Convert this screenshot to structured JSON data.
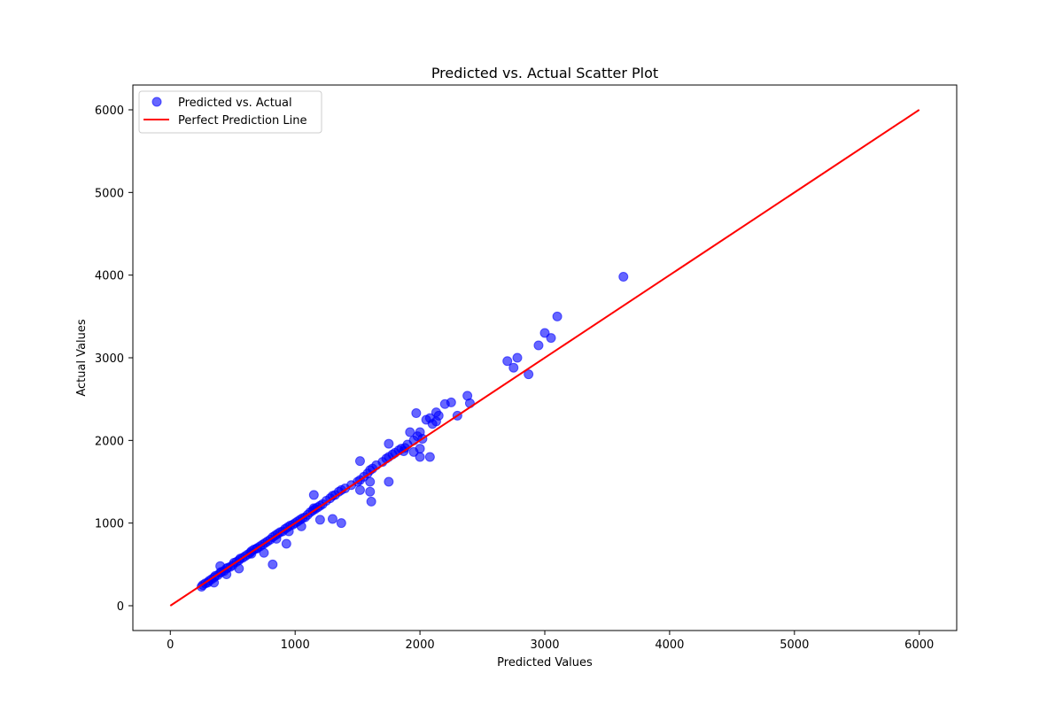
{
  "chart_data": {
    "type": "scatter",
    "title": "Predicted vs. Actual Scatter Plot",
    "xlabel": "Predicted Values",
    "ylabel": "Actual Values",
    "xlim": [
      -300,
      6300
    ],
    "ylim": [
      -300,
      6300
    ],
    "xticks": [
      0,
      1000,
      2000,
      3000,
      4000,
      5000,
      6000
    ],
    "yticks": [
      0,
      1000,
      2000,
      3000,
      4000,
      5000,
      6000
    ],
    "grid": false,
    "legend_position": "top-left",
    "series": [
      {
        "name": "Predicted vs. Actual",
        "kind": "scatter",
        "color": "#0000ff",
        "opacity": 0.6,
        "x": [
          250,
          260,
          280,
          300,
          310,
          330,
          350,
          360,
          380,
          400,
          410,
          430,
          450,
          460,
          480,
          500,
          510,
          530,
          550,
          560,
          580,
          600,
          620,
          640,
          650,
          670,
          690,
          700,
          720,
          740,
          760,
          780,
          800,
          820,
          840,
          860,
          880,
          900,
          920,
          940,
          960,
          980,
          1000,
          1020,
          1040,
          1060,
          1080,
          1100,
          1120,
          1140,
          1160,
          1180,
          1200,
          1220,
          1250,
          1280,
          1300,
          1320,
          1350,
          1370,
          1400,
          1450,
          1500,
          1520,
          1550,
          1580,
          1600,
          1620,
          1650,
          1700,
          1730,
          1750,
          1780,
          1800,
          1830,
          1850,
          1880,
          1900,
          1950,
          1980,
          2000,
          2020,
          2050,
          2080,
          2100,
          2130,
          2150,
          2200,
          2250,
          2300,
          2380,
          2400,
          2700,
          2750,
          2780,
          2870,
          2950,
          3000,
          3050,
          3100,
          3630,
          400,
          820,
          1370,
          1610,
          930,
          1300,
          1600,
          2080,
          1750,
          1600,
          1200,
          2000,
          1520,
          1520,
          1150,
          350,
          450,
          550,
          650,
          750,
          850,
          950,
          1050,
          1150,
          1750,
          1870,
          1920,
          1970,
          2130,
          2000,
          1950
        ],
        "y": [
          230,
          250,
          270,
          280,
          300,
          320,
          340,
          360,
          370,
          400,
          410,
          420,
          450,
          460,
          470,
          490,
          520,
          530,
          550,
          570,
          580,
          600,
          620,
          640,
          660,
          680,
          690,
          700,
          720,
          740,
          760,
          780,
          800,
          830,
          850,
          870,
          890,
          900,
          930,
          950,
          970,
          980,
          1000,
          1020,
          1040,
          1060,
          1070,
          1100,
          1130,
          1150,
          1170,
          1190,
          1210,
          1230,
          1270,
          1300,
          1330,
          1340,
          1380,
          1400,
          1420,
          1460,
          1500,
          1520,
          1560,
          1600,
          1640,
          1660,
          1700,
          1740,
          1780,
          1800,
          1830,
          1850,
          1880,
          1900,
          1910,
          1950,
          2000,
          2050,
          2100,
          2020,
          2250,
          2270,
          2200,
          2340,
          2300,
          2440,
          2460,
          2300,
          2540,
          2450,
          2960,
          2880,
          3000,
          2800,
          3150,
          3300,
          3240,
          3500,
          3980,
          480,
          500,
          1000,
          1260,
          750,
          1050,
          1500,
          1800,
          1960,
          1380,
          1040,
          1800,
          1750,
          1400,
          1340,
          280,
          380,
          450,
          630,
          640,
          810,
          900,
          960,
          1180,
          1500,
          1870,
          2100,
          2330,
          2230,
          1900,
          1860
        ]
      },
      {
        "name": "Perfect Prediction Line",
        "kind": "line",
        "color": "#ff0000",
        "x": [
          0,
          6000
        ],
        "y": [
          0,
          6000
        ]
      }
    ]
  }
}
